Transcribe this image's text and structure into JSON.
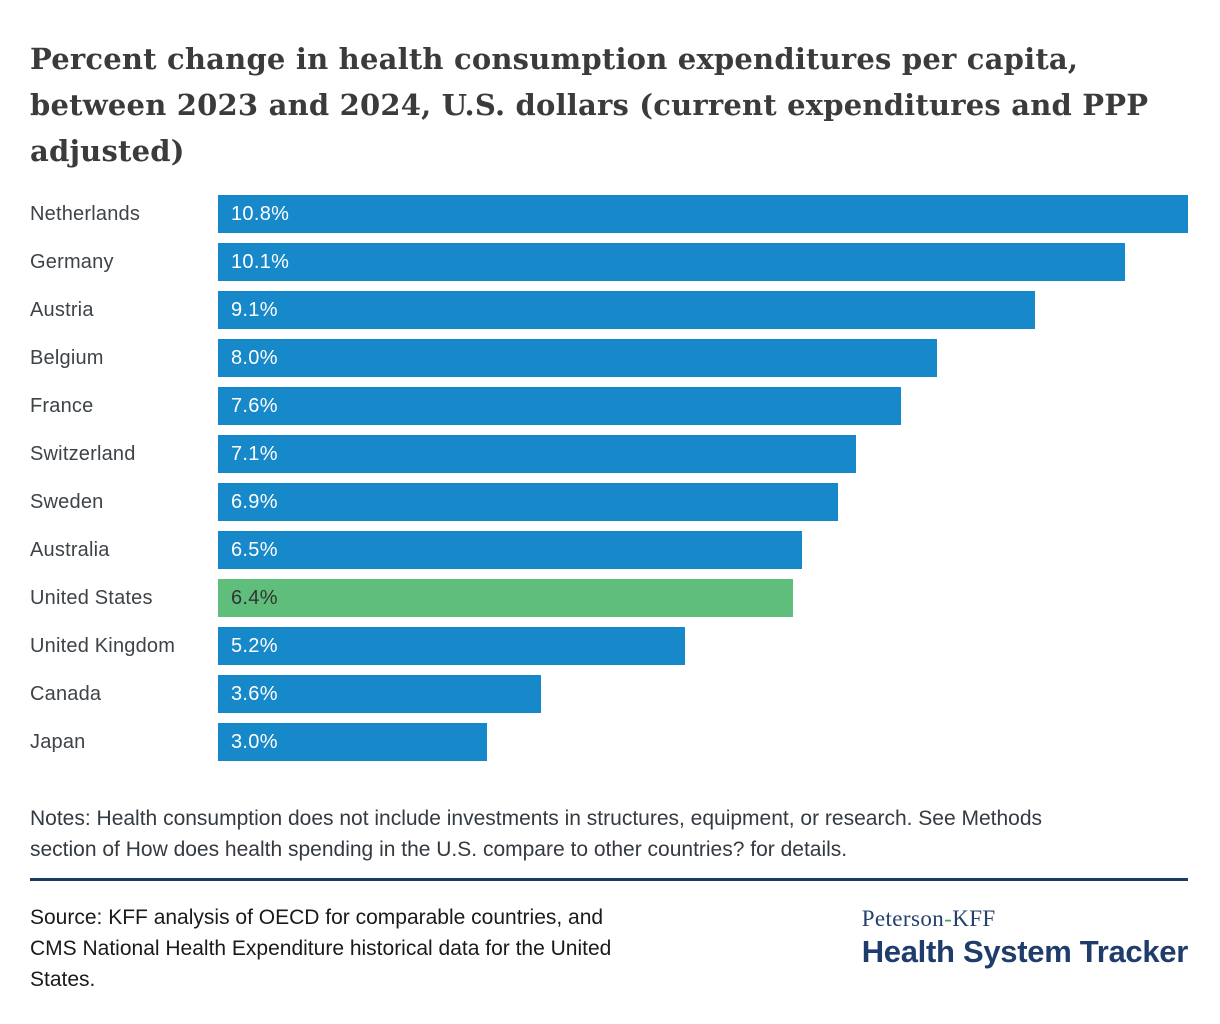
{
  "page": {
    "title": "Percent change in health consumption expenditures per capita, between 2023 and 2024, U.S. dollars (current expenditures and PPP adjusted)",
    "title_lines": [
      "Percent change in health consumption expenditures per capita,",
      "between 2023 and 2024, U.S. dollars (current expenditures and PPP",
      "adjusted)"
    ],
    "notes": "Notes: Health consumption does not include investments in structures, equipment, or research. See Methods section of How does health spending in the U.S. compare to other countries? for details.",
    "notes_lines": [
      "Notes: Health consumption does not include investments in structures, equipment, or research. See Methods",
      "section of How does health spending in the U.S. compare to other countries? for details."
    ],
    "source": "Source: KFF analysis of OECD for comparable countries, and CMS National Health Expenditure historical data for the United States.",
    "source_lines": [
      "Source: KFF analysis of OECD for comparable countries, and",
      "CMS National Health Expenditure historical data for the United",
      "States."
    ],
    "logo": {
      "brand_prefix": "Peterson",
      "hyphen": "-",
      "brand_suffix": "KFF",
      "brand_bottom": "Health System Tracker"
    }
  },
  "colors": {
    "bar_blue": "#1788c9",
    "bar_green": "#5fbe7c",
    "divider_navy": "#1d3a63",
    "logo_navy": "#1e3c6c",
    "logo_hyphen_green": "#46a45e",
    "value_on_blue": "#ffffff",
    "value_on_green": "#333333"
  },
  "chart_data": {
    "type": "bar",
    "orientation": "horizontal",
    "title": "Percent change in health consumption expenditures per capita, between 2023 and 2024, U.S. dollars (current expenditures and PPP adjusted)",
    "categories": [
      "Netherlands",
      "Germany",
      "Austria",
      "Belgium",
      "France",
      "Switzerland",
      "Sweden",
      "Australia",
      "United States",
      "United Kingdom",
      "Canada",
      "Japan"
    ],
    "values": [
      10.8,
      10.1,
      9.1,
      8.0,
      7.6,
      7.1,
      6.9,
      6.5,
      6.4,
      5.2,
      3.6,
      3.0
    ],
    "value_labels": [
      "10.8%",
      "10.1%",
      "9.1%",
      "8.0%",
      "7.6%",
      "7.1%",
      "6.9%",
      "6.5%",
      "6.4%",
      "5.2%",
      "3.6%",
      "3.0%"
    ],
    "value_suffix": "%",
    "highlight_category": "United States",
    "xlim": [
      0,
      10.8
    ],
    "xlabel": "",
    "ylabel": "",
    "grid": false,
    "legend": false,
    "data_labels_position": "inside-start"
  }
}
